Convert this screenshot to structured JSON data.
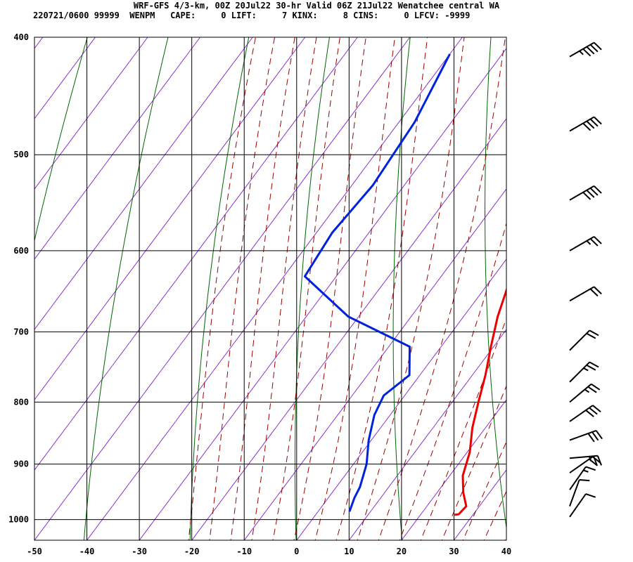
{
  "header": {
    "title": "WRF-GFS 4/3-km, 00Z 20Jul22 30-hr Valid 06Z 21Jul22 Wenatchee central WA",
    "indices": "220721/0600 99999  WENPM   CAPE:     0 LIFT:     7 KINX:     8 CINS:     0 LFCV: -9999"
  },
  "colors": {
    "temperature": "#ee0000",
    "dewpoint": "#0022dd",
    "isotherm": "#8833cc",
    "dry_adiabat": "#006600",
    "moist_adiabat": "#990000",
    "grid": "#000000"
  },
  "chart_data": {
    "type": "line",
    "grid": true,
    "xlim": [
      -50,
      40
    ],
    "ylim": [
      1040,
      400
    ],
    "y_scale": "log",
    "x_ticks": [
      "-50",
      "-40",
      "-30",
      "-20",
      "-10",
      "0",
      "10",
      "20",
      "30",
      "40"
    ],
    "y_ticks": [
      "400",
      "500",
      "600",
      "700",
      "800",
      "900",
      "1000"
    ],
    "series": [
      {
        "id": "temperature",
        "points": [
          {
            "p": 413,
            "t": -20.5
          },
          {
            "p": 440,
            "t": -16.5
          },
          {
            "p": 470,
            "t": -12.5
          },
          {
            "p": 500,
            "t": -8.5
          },
          {
            "p": 530,
            "t": -5.0
          },
          {
            "p": 560,
            "t": -1.8
          },
          {
            "p": 600,
            "t": 1.5
          },
          {
            "p": 640,
            "t": 4.0
          },
          {
            "p": 680,
            "t": 6.5
          },
          {
            "p": 720,
            "t": 9.5
          },
          {
            "p": 760,
            "t": 12.5
          },
          {
            "p": 800,
            "t": 15.0
          },
          {
            "p": 840,
            "t": 17.5
          },
          {
            "p": 880,
            "t": 20.5
          },
          {
            "p": 920,
            "t": 22.5
          },
          {
            "p": 950,
            "t": 25.0
          },
          {
            "p": 975,
            "t": 27.5
          },
          {
            "p": 990,
            "t": 27.2
          },
          {
            "p": 991,
            "t": 26.5
          }
        ]
      },
      {
        "id": "dewpoint",
        "points": [
          {
            "p": 413,
            "t": -40.0
          },
          {
            "p": 470,
            "t": -37.0
          },
          {
            "p": 530,
            "t": -36.0
          },
          {
            "p": 580,
            "t": -37.0
          },
          {
            "p": 630,
            "t": -36.0
          },
          {
            "p": 680,
            "t": -22.0
          },
          {
            "p": 720,
            "t": -6.0
          },
          {
            "p": 760,
            "t": -2.0
          },
          {
            "p": 790,
            "t": -4.0
          },
          {
            "p": 820,
            "t": -3.0
          },
          {
            "p": 860,
            "t": -0.5
          },
          {
            "p": 900,
            "t": 2.5
          },
          {
            "p": 940,
            "t": 4.5
          },
          {
            "p": 960,
            "t": 5.0
          },
          {
            "p": 985,
            "t": 6.0
          }
        ]
      }
    ],
    "wind_barbs": [
      {
        "p": 415,
        "dir": 240,
        "speed": 45
      },
      {
        "p": 478,
        "dir": 240,
        "speed": 40
      },
      {
        "p": 545,
        "dir": 240,
        "speed": 40
      },
      {
        "p": 600,
        "dir": 240,
        "speed": 25
      },
      {
        "p": 660,
        "dir": 240,
        "speed": 20
      },
      {
        "p": 725,
        "dir": 225,
        "speed": 20
      },
      {
        "p": 770,
        "dir": 225,
        "speed": 25
      },
      {
        "p": 800,
        "dir": 230,
        "speed": 25
      },
      {
        "p": 830,
        "dir": 235,
        "speed": 30
      },
      {
        "p": 860,
        "dir": 250,
        "speed": 30
      },
      {
        "p": 890,
        "dir": 265,
        "speed": 25
      },
      {
        "p": 915,
        "dir": 235,
        "speed": 20
      },
      {
        "p": 945,
        "dir": 215,
        "speed": 15
      },
      {
        "p": 975,
        "dir": 200,
        "speed": 10
      },
      {
        "p": 995,
        "dir": 215,
        "speed": 10
      }
    ]
  }
}
